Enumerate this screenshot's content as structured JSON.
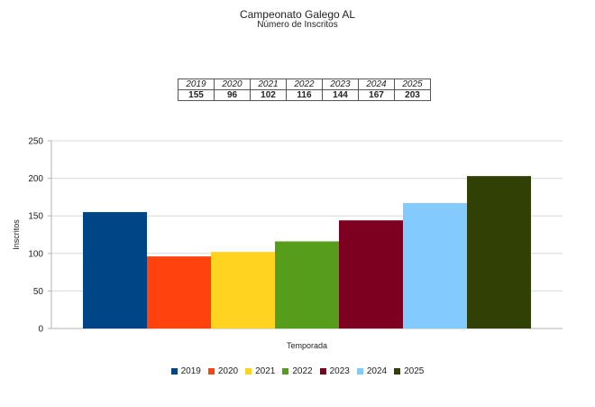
{
  "chart_data": {
    "type": "bar",
    "title": "Campeonato Galego AL",
    "subtitle": "Número de Inscritos",
    "xlabel": "Temporada",
    "ylabel": "Inscritos",
    "ylim": [
      0,
      250
    ],
    "yticks": [
      0,
      50,
      100,
      150,
      200,
      250
    ],
    "grid": true,
    "legend": "bottom",
    "series": [
      {
        "name": "2019",
        "value": 155,
        "color": "#004586"
      },
      {
        "name": "2020",
        "value": 96,
        "color": "#ff420e"
      },
      {
        "name": "2021",
        "value": 102,
        "color": "#ffd320"
      },
      {
        "name": "2022",
        "value": 116,
        "color": "#579d1c"
      },
      {
        "name": "2023",
        "value": 144,
        "color": "#7e0021"
      },
      {
        "name": "2024",
        "value": 167,
        "color": "#83caff"
      },
      {
        "name": "2025",
        "value": 203,
        "color": "#314004"
      }
    ]
  },
  "summary_table": {
    "years": [
      "2019",
      "2020",
      "2021",
      "2022",
      "2023",
      "2024",
      "2025"
    ],
    "values": [
      "155",
      "96",
      "102",
      "116",
      "144",
      "167",
      "203"
    ]
  }
}
